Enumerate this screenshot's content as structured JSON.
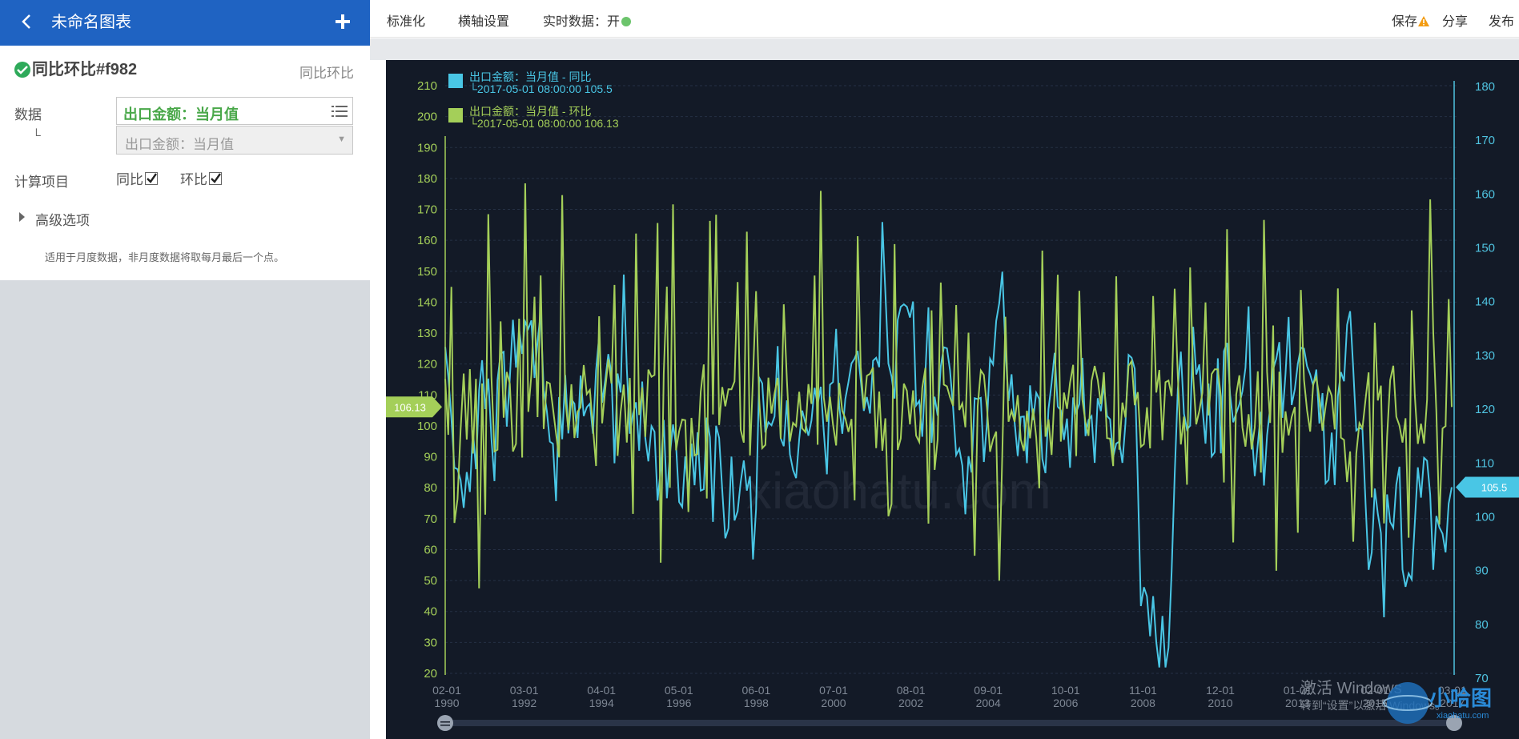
{
  "app": {
    "chart_name": "未命名图表",
    "back_icon": "chevron-left-icon",
    "add_icon": "plus-icon"
  },
  "config": {
    "title": "同比环比#f982",
    "type": "同比环比",
    "data_label": "数据",
    "corner_label": "└",
    "field_value": "出口金额：当月值",
    "sub_field_value": "出口金额：当月值",
    "calc_label": "计算项目",
    "yoy_label": "同比",
    "yoy_checked": true,
    "mom_label": "环比",
    "mom_checked": true,
    "advanced_label": "高级选项",
    "note": "适用于月度数据，非月度数据将取每月最后一个点。"
  },
  "toolbar": {
    "normalize": "标准化",
    "xaxis": "横轴设置",
    "realtime": "实时数据：开",
    "save": "保存",
    "share": "分享",
    "publish": "发布"
  },
  "chart": {
    "watermark": "xiaohatu.com",
    "windows_line1": "激活 Windows",
    "windows_line2": "转到“设置”以激活 Windows。",
    "logo_text": "小哈图",
    "logo_sub": "xiaohatu.com",
    "left_marker": "106.13",
    "right_marker": "105.5"
  },
  "chart_data": {
    "type": "line",
    "colors": {
      "yoy": "#49c6e5",
      "mom": "#a4cf59",
      "background": "#131a27"
    },
    "x_ticks": [
      "02-01 1990",
      "03-01 1992",
      "04-01 1994",
      "05-01 1996",
      "06-01 1998",
      "07-01 2000",
      "08-01 2002",
      "09-01 2004",
      "10-01 2006",
      "11-01 2008",
      "12-01 2010",
      "01-01 2013",
      "02-01 2015",
      "03-01 2017"
    ],
    "x_range": [
      "1990-02",
      "2017-05"
    ],
    "y_left": {
      "min": 20,
      "max": 210,
      "ticks": [
        20,
        30,
        40,
        50,
        60,
        70,
        80,
        90,
        100,
        110,
        120,
        130,
        140,
        150,
        160,
        170,
        180,
        190,
        200,
        210
      ]
    },
    "y_right": {
      "min": 70,
      "max": 180,
      "ticks": [
        70,
        80,
        90,
        100,
        110,
        120,
        130,
        140,
        150,
        160,
        170,
        180
      ]
    },
    "grid": true,
    "legend": "top-left",
    "series": [
      {
        "name": "出口金额：当月值 - 同比",
        "axis": "right",
        "last_point": "2017-05-01 08:00:00 105.5",
        "last_value": 105.5
      },
      {
        "name": "出口金额：当月值 - 环比",
        "axis": "left",
        "last_point": "2017-05-01 08:00:00 106.13",
        "last_value": 106.13
      }
    ]
  }
}
